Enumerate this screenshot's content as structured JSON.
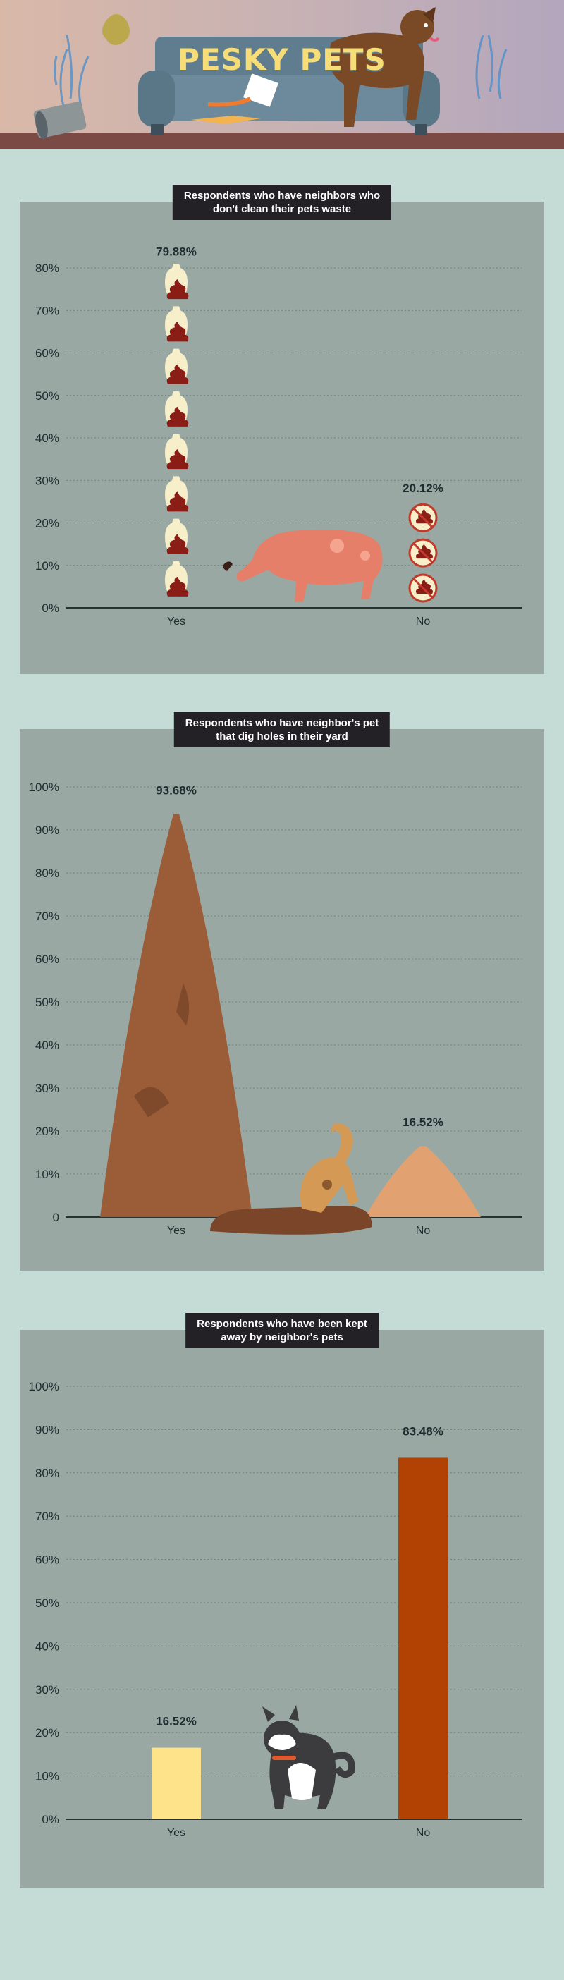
{
  "header": {
    "title": "PESKY PETS"
  },
  "colors": {
    "page_bg": "#c5dcd6",
    "panel_bg": "#99a8a3",
    "title_bg": "#232126",
    "title_text": "#f7dd77",
    "waste_fill": "#8a1d16",
    "bag_fill": "#f6efc9",
    "no_icon_ring": "#c0392b",
    "mound_yes": "#9a5d38",
    "mound_no": "#e2a170",
    "bar_yes": "#fee38a",
    "bar_no": "#b24203"
  },
  "chart_data": [
    {
      "type": "bar",
      "title": "Respondents who have neighbors who\ndon't clean their pets waste",
      "categories": [
        "Yes",
        "No"
      ],
      "values": [
        79.88,
        20.12
      ],
      "labels": [
        "79.88%",
        "20.12%"
      ],
      "ylim": [
        0,
        80
      ],
      "yticks": [
        "0%",
        "10%",
        "20%",
        "30%",
        "40%",
        "50%",
        "60%",
        "70%",
        "80%"
      ],
      "grid": true,
      "mark_style": "pictograph",
      "icons": [
        "poop-bag-icon",
        "no-poop-icon"
      ]
    },
    {
      "type": "bar",
      "title": "Respondents who have neighbor's pet\nthat dig holes in their yard",
      "categories": [
        "Yes",
        "No"
      ],
      "values": [
        93.68,
        16.52
      ],
      "labels": [
        "93.68%",
        "16.52%"
      ],
      "ylim": [
        0,
        100
      ],
      "yticks": [
        "0",
        "10%",
        "20%",
        "30%",
        "40%",
        "50%",
        "60%",
        "70%",
        "80%",
        "90%",
        "100%"
      ],
      "grid": true,
      "mark_style": "dirt-mound"
    },
    {
      "type": "bar",
      "title": "Respondents who have been kept\naway by neighbor's pets",
      "categories": [
        "Yes",
        "No"
      ],
      "values": [
        16.52,
        83.48
      ],
      "labels": [
        "16.52%",
        "83.48%"
      ],
      "ylim": [
        0,
        100
      ],
      "yticks": [
        "0%",
        "10%",
        "20%",
        "30%",
        "40%",
        "50%",
        "60%",
        "70%",
        "80%",
        "90%",
        "100%"
      ],
      "grid": true,
      "mark_style": "bar"
    }
  ]
}
